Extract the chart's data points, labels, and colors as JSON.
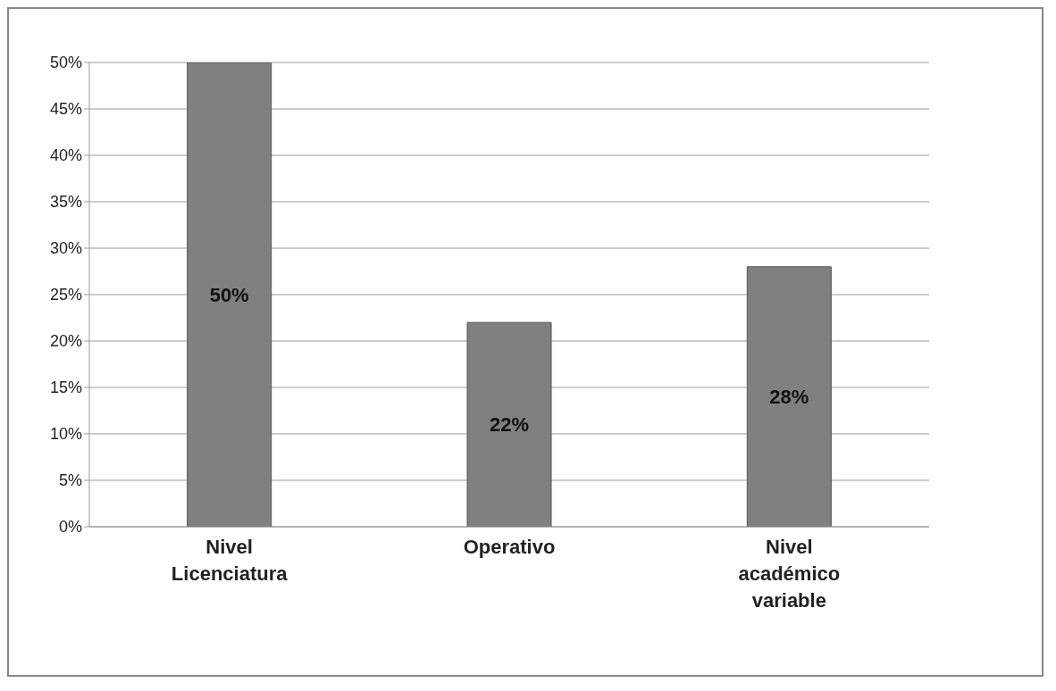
{
  "chart_data": {
    "type": "bar",
    "categories": [
      "Nivel Licenciatura",
      "Operativo",
      "Nivel académico variable"
    ],
    "values": [
      50,
      22,
      28
    ],
    "color": "#808080",
    "value_labels": [
      "50%",
      "22%",
      "28%"
    ],
    "ylim": [
      0,
      50
    ],
    "yticks": [
      {
        "value": 0,
        "label": "0%"
      },
      {
        "value": 5,
        "label": "5%"
      },
      {
        "value": 10,
        "label": "10%"
      },
      {
        "value": 15,
        "label": "15%"
      },
      {
        "value": 20,
        "label": "20%"
      },
      {
        "value": 25,
        "label": "25%"
      },
      {
        "value": 30,
        "label": "30%"
      },
      {
        "value": 35,
        "label": "35%"
      },
      {
        "value": 40,
        "label": "40%"
      },
      {
        "value": 45,
        "label": "45%"
      },
      {
        "value": 50,
        "label": "50%"
      }
    ],
    "grid": "y",
    "legend": false
  }
}
